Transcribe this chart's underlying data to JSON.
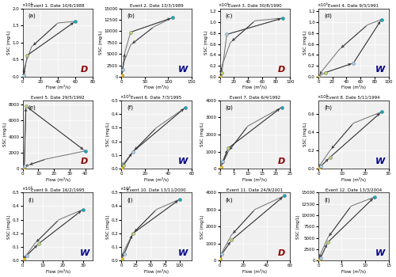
{
  "events": [
    {
      "label": "a",
      "title": "Event 1. Date 10/6/1988",
      "dtype": "D",
      "xmax": 80,
      "ymax": 8,
      "yexp": 4,
      "rising": {
        "flow": [
          0.5,
          1,
          2,
          5,
          60
        ],
        "ssc": [
          0.05,
          0.2,
          0.5,
          2.5,
          6.5
        ]
      },
      "falling": {
        "flow": [
          60,
          40,
          10,
          3,
          0.5
        ],
        "ssc": [
          6.5,
          6.3,
          3.5,
          1.5,
          0.05
        ]
      },
      "dots": [
        {
          "flow": 0.5,
          "ssc": 0.05,
          "color": "#f5c211"
        },
        {
          "flow": 1,
          "ssc": 0.2,
          "color": "#aad4f5"
        },
        {
          "flow": 5,
          "ssc": 2.5,
          "color": "#b8d96e"
        },
        {
          "flow": 60,
          "ssc": 6.5,
          "color": "#00b0c8"
        }
      ]
    },
    {
      "label": "b",
      "title": "Event 2. Date 13/3/1989",
      "dtype": "W",
      "xmax": 150,
      "ymax": 15000,
      "yexp": 1,
      "rising": {
        "flow": [
          1,
          3,
          8,
          20,
          110
        ],
        "ssc": [
          300,
          1500,
          5500,
          9800,
          13000
        ]
      },
      "falling": {
        "flow": [
          110,
          70,
          20,
          5,
          1
        ],
        "ssc": [
          13000,
          11000,
          7000,
          3000,
          300
        ]
      },
      "dots": [
        {
          "flow": 1,
          "ssc": 300,
          "color": "#f5c211"
        },
        {
          "flow": 3,
          "ssc": 1500,
          "color": "#aad4f5"
        },
        {
          "flow": 20,
          "ssc": 9800,
          "color": "#b8d96e"
        },
        {
          "flow": 110,
          "ssc": 13000,
          "color": "#00b0c8"
        }
      ]
    },
    {
      "label": "c",
      "title": "Event 3. Date 30/8/1990",
      "dtype": "D",
      "xmax": 100,
      "ymax": 5,
      "yexp": 4,
      "rising": {
        "flow": [
          0.5,
          1,
          3,
          10,
          90
        ],
        "ssc": [
          0.02,
          0.05,
          0.3,
          3.1,
          4.3
        ]
      },
      "falling": {
        "flow": [
          90,
          50,
          15,
          3,
          0.5
        ],
        "ssc": [
          4.3,
          4.1,
          2.5,
          0.8,
          0.02
        ]
      },
      "dots": [
        {
          "flow": 0.5,
          "ssc": 0.02,
          "color": "#f5c211"
        },
        {
          "flow": 3,
          "ssc": 0.3,
          "color": "#b8d96e"
        },
        {
          "flow": 10,
          "ssc": 3.1,
          "color": "#aad4f5"
        },
        {
          "flow": 90,
          "ssc": 4.3,
          "color": "#00b0c8"
        }
      ]
    },
    {
      "label": "d",
      "title": "Event 4. Date 9/3/1991",
      "dtype": "W",
      "xmax": 100,
      "ymax": 5,
      "yexp": 4,
      "rising": {
        "flow": [
          0.5,
          10,
          50,
          90
        ],
        "ssc": [
          0.02,
          0.3,
          1.0,
          4.2
        ]
      },
      "falling": {
        "flow": [
          90,
          70,
          30,
          5,
          0.5
        ],
        "ssc": [
          4.2,
          3.8,
          2.0,
          0.4,
          0.02
        ]
      },
      "dots": [
        {
          "flow": 0.5,
          "ssc": 0.02,
          "color": "#f5c211"
        },
        {
          "flow": 10,
          "ssc": 0.3,
          "color": "#b8d96e"
        },
        {
          "flow": 50,
          "ssc": 1.0,
          "color": "#aad4f5"
        },
        {
          "flow": 90,
          "ssc": 4.2,
          "color": "#00b0c8"
        }
      ]
    },
    {
      "label": "e",
      "title": "Event 5. Date 29/5/1992",
      "dtype": "D",
      "xmax": 45,
      "ymax": 8500,
      "yexp": 1,
      "rising": {
        "flow": [
          0.5,
          1,
          2,
          40
        ],
        "ssc": [
          100,
          300,
          7800,
          2200
        ]
      },
      "falling": {
        "flow": [
          40,
          15,
          3,
          0.5
        ],
        "ssc": [
          2200,
          1200,
          400,
          100
        ]
      },
      "dots": [
        {
          "flow": 0.5,
          "ssc": 100,
          "color": "#f5c211"
        },
        {
          "flow": 1,
          "ssc": 300,
          "color": "#aad4f5"
        },
        {
          "flow": 2,
          "ssc": 7800,
          "color": "#b8d96e"
        },
        {
          "flow": 40,
          "ssc": 2200,
          "color": "#00b0c8"
        }
      ]
    },
    {
      "label": "f",
      "title": "Event 6. Date 7/3/1995",
      "dtype": "W",
      "xmax": 60,
      "ymax": 2,
      "yexp": 4,
      "rising": {
        "flow": [
          0.5,
          2,
          10,
          55
        ],
        "ssc": [
          0.02,
          0.1,
          0.5,
          1.8
        ]
      },
      "falling": {
        "flow": [
          55,
          30,
          10,
          2,
          0.5
        ],
        "ssc": [
          1.8,
          1.2,
          0.5,
          0.15,
          0.02
        ]
      },
      "dots": [
        {
          "flow": 0.5,
          "ssc": 0.02,
          "color": "#f5c211"
        },
        {
          "flow": 2,
          "ssc": 0.1,
          "color": "#b8d96e"
        },
        {
          "flow": 10,
          "ssc": 0.5,
          "color": "#aad4f5"
        },
        {
          "flow": 55,
          "ssc": 1.8,
          "color": "#00b0c8"
        }
      ]
    },
    {
      "label": "g",
      "title": "Event 7. Date 6/4/1992",
      "dtype": "D",
      "xmax": 25,
      "ymax": 4000,
      "yexp": 1,
      "rising": {
        "flow": [
          0.3,
          1,
          3,
          22
        ],
        "ssc": [
          100,
          400,
          1200,
          3600
        ]
      },
      "falling": {
        "flow": [
          22,
          10,
          3,
          0.3
        ],
        "ssc": [
          3600,
          2500,
          1000,
          100
        ]
      },
      "dots": [
        {
          "flow": 0.3,
          "ssc": 100,
          "color": "#f5c211"
        },
        {
          "flow": 1,
          "ssc": 400,
          "color": "#aad4f5"
        },
        {
          "flow": 3,
          "ssc": 1200,
          "color": "#b8d96e"
        },
        {
          "flow": 22,
          "ssc": 3600,
          "color": "#00b0c8"
        }
      ]
    },
    {
      "label": "h",
      "title": "Event 8. Date 5/11/1994",
      "dtype": "W",
      "xmax": 30,
      "ymax": 3,
      "yexp": 4,
      "rising": {
        "flow": [
          0.3,
          1,
          5,
          27
        ],
        "ssc": [
          0.05,
          0.1,
          0.5,
          2.5
        ]
      },
      "falling": {
        "flow": [
          27,
          15,
          5,
          1,
          0.3
        ],
        "ssc": [
          2.5,
          2.0,
          0.8,
          0.2,
          0.05
        ]
      },
      "dots": [
        {
          "flow": 0.3,
          "ssc": 0.05,
          "color": "#f5c211"
        },
        {
          "flow": 1,
          "ssc": 0.1,
          "color": "#aad4f5"
        },
        {
          "flow": 5,
          "ssc": 0.5,
          "color": "#b8d96e"
        },
        {
          "flow": 27,
          "ssc": 2.5,
          "color": "#00b0c8"
        }
      ]
    },
    {
      "label": "i",
      "title": "Event 9. Date 16/2/1995",
      "dtype": "W",
      "xmax": 35,
      "ymax": 2,
      "yexp": 4,
      "rising": {
        "flow": [
          0.5,
          2,
          8,
          30
        ],
        "ssc": [
          0.05,
          0.15,
          0.5,
          1.5
        ]
      },
      "falling": {
        "flow": [
          30,
          18,
          6,
          1,
          0.5
        ],
        "ssc": [
          1.5,
          1.2,
          0.5,
          0.1,
          0.05
        ]
      },
      "dots": [
        {
          "flow": 0.5,
          "ssc": 0.05,
          "color": "#f5c211"
        },
        {
          "flow": 2,
          "ssc": 0.15,
          "color": "#aad4f5"
        },
        {
          "flow": 8,
          "ssc": 0.5,
          "color": "#b8d96e"
        },
        {
          "flow": 30,
          "ssc": 1.5,
          "color": "#00b0c8"
        }
      ]
    },
    {
      "label": "j",
      "title": "Event 10. Date 13/11/2000",
      "dtype": "W",
      "xmax": 120,
      "ymax": 2,
      "yexp": 4,
      "rising": {
        "flow": [
          1,
          5,
          20,
          100
        ],
        "ssc": [
          0.05,
          0.2,
          0.8,
          1.8
        ]
      },
      "falling": {
        "flow": [
          100,
          60,
          20,
          5,
          1
        ],
        "ssc": [
          1.8,
          1.5,
          0.8,
          0.3,
          0.05
        ]
      },
      "dots": [
        {
          "flow": 1,
          "ssc": 0.05,
          "color": "#f5c211"
        },
        {
          "flow": 5,
          "ssc": 0.2,
          "color": "#aad4f5"
        },
        {
          "flow": 20,
          "ssc": 0.8,
          "color": "#b8d96e"
        },
        {
          "flow": 100,
          "ssc": 1.8,
          "color": "#00b0c8"
        }
      ]
    },
    {
      "label": "k",
      "title": "Event 11. Date 24/9/2001",
      "dtype": "D",
      "xmax": 60,
      "ymax": 4000,
      "yexp": 1,
      "rising": {
        "flow": [
          0.5,
          2,
          10,
          55
        ],
        "ssc": [
          100,
          400,
          1200,
          3800
        ]
      },
      "falling": {
        "flow": [
          55,
          30,
          10,
          2,
          0.5
        ],
        "ssc": [
          3800,
          3000,
          1500,
          500,
          100
        ]
      },
      "dots": [
        {
          "flow": 0.5,
          "ssc": 100,
          "color": "#f5c211"
        },
        {
          "flow": 2,
          "ssc": 400,
          "color": "#aad4f5"
        },
        {
          "flow": 10,
          "ssc": 1200,
          "color": "#b8d96e"
        },
        {
          "flow": 55,
          "ssc": 3800,
          "color": "#00b0c8"
        }
      ]
    },
    {
      "label": "l",
      "title": "Event 12. Date 13/3/2004",
      "dtype": "W",
      "xmax": 15,
      "ymax": 15000,
      "yexp": 1,
      "rising": {
        "flow": [
          0.2,
          0.5,
          2,
          12
        ],
        "ssc": [
          200,
          600,
          4000,
          14000
        ]
      },
      "falling": {
        "flow": [
          12,
          7,
          2,
          0.5,
          0.2
        ],
        "ssc": [
          14000,
          12000,
          5000,
          1500,
          200
        ]
      },
      "dots": [
        {
          "flow": 0.2,
          "ssc": 200,
          "color": "#f5c211"
        },
        {
          "flow": 0.5,
          "ssc": 600,
          "color": "#aad4f5"
        },
        {
          "flow": 2,
          "ssc": 4000,
          "color": "#b8d96e"
        },
        {
          "flow": 12,
          "ssc": 14000,
          "color": "#00b0c8"
        }
      ]
    }
  ],
  "bg_color": "#f0f0f0",
  "curve_color": "#707070",
  "arrow_color": "#303030",
  "dtype_colors": {
    "D": "#8B0000",
    "W": "#00008B"
  }
}
